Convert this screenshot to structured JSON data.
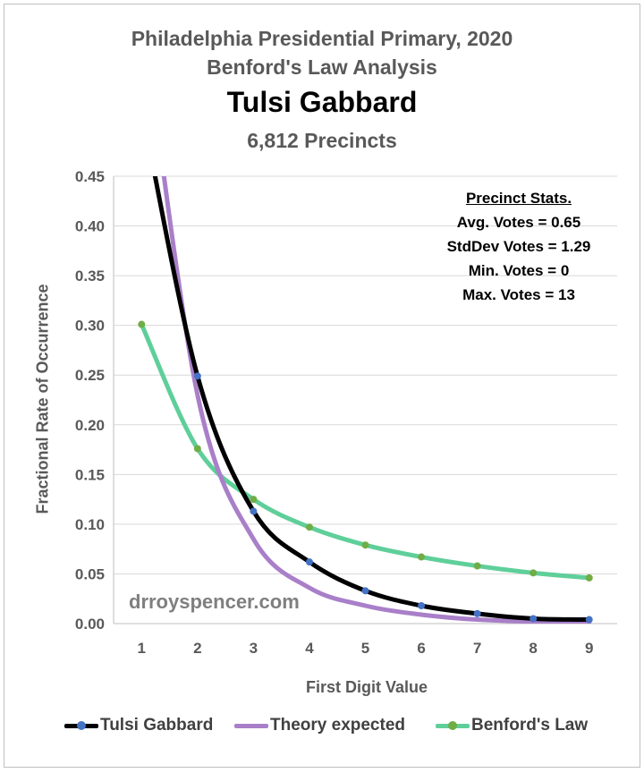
{
  "chart_data": {
    "type": "line",
    "title": "Philadelphia Presidential Primary, 2020",
    "subtitle": "Benford's Law Analysis",
    "candidate": "Tulsi Gabbard",
    "precincts": "6,812 Precincts",
    "xlabel": "First Digit Value",
    "ylabel": "Fractional Rate of Occurrence",
    "x": [
      1,
      2,
      3,
      4,
      5,
      6,
      7,
      8,
      9
    ],
    "xlim": [
      0.5,
      9.5
    ],
    "ylim": [
      0,
      0.45
    ],
    "yticks": [
      "0.00",
      "0.05",
      "0.10",
      "0.15",
      "0.20",
      "0.25",
      "0.30",
      "0.35",
      "0.40",
      "0.45"
    ],
    "xticks": [
      "1",
      "2",
      "3",
      "4",
      "5",
      "6",
      "7",
      "8",
      "9"
    ],
    "grid": true,
    "legend_position": "bottom",
    "series": [
      {
        "name": "Tulsi Gabbard",
        "color": "#000000",
        "marker_color": "#4472c4",
        "points_shown": [
          2,
          3,
          4,
          5,
          6,
          7,
          8,
          9
        ],
        "values": [
          0.52,
          0.249,
          0.113,
          0.062,
          0.033,
          0.018,
          0.01,
          0.005,
          0.004
        ]
      },
      {
        "name": "Theory expected",
        "color": "#a97fc9",
        "marker_color": null,
        "points_shown": [],
        "values": [
          0.62,
          0.23,
          0.085,
          0.036,
          0.018,
          0.009,
          0.004,
          0.002,
          0.001
        ]
      },
      {
        "name": "Benford's Law",
        "color": "#5fcf9a",
        "marker_color": "#70ad47",
        "points_shown": [
          1,
          2,
          3,
          4,
          5,
          6,
          7,
          8,
          9
        ],
        "values": [
          0.301,
          0.176,
          0.125,
          0.097,
          0.079,
          0.067,
          0.058,
          0.051,
          0.046
        ]
      }
    ],
    "annotations": {
      "stats_header": "Precinct Stats.",
      "stats": [
        "Avg. Votes = 0.65",
        "StdDev Votes = 1.29",
        "Min. Votes = 0",
        "Max. Votes = 13"
      ],
      "watermark": "drroyspencer.com"
    }
  }
}
